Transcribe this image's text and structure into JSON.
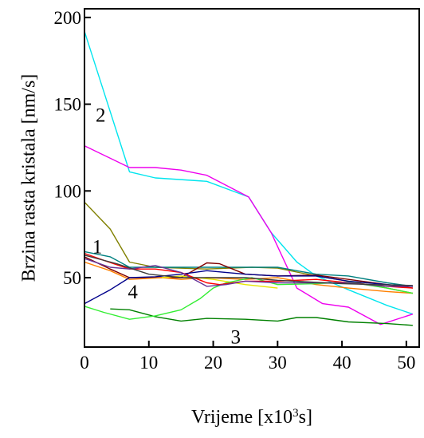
{
  "chart_data": {
    "type": "line",
    "xlabel": "Vrijeme [x10",
    "xlabel_sup": "3",
    "xlabel_end": "s]",
    "ylabel": "Brzina rasta kristala [nm/s]",
    "xlim": [
      0,
      52
    ],
    "ylim": [
      10,
      205
    ],
    "xticks": [
      0,
      10,
      20,
      30,
      40,
      50
    ],
    "yticks": [
      50,
      100,
      150,
      200
    ],
    "xtick_labels": [
      "0",
      "10",
      "20",
      "30",
      "40",
      "50"
    ],
    "ytick_labels": [
      "50",
      "100",
      "150",
      "200"
    ],
    "grid": false,
    "annotations": [
      {
        "text": "2",
        "x": 2.5,
        "y": 140
      },
      {
        "text": "1",
        "x": 2.0,
        "y": 64
      },
      {
        "text": "4",
        "x": 7.5,
        "y": 38
      },
      {
        "text": "3",
        "x": 23.5,
        "y": 12
      }
    ],
    "series": [
      {
        "color": "#00e5ee",
        "points": [
          [
            0,
            192
          ],
          [
            7,
            111
          ],
          [
            11,
            107.5
          ],
          [
            19,
            105.5
          ],
          [
            25.5,
            96.5
          ],
          [
            29,
            76
          ],
          [
            33,
            59
          ],
          [
            36,
            51
          ],
          [
            41,
            43
          ],
          [
            47,
            34
          ],
          [
            51,
            29
          ]
        ]
      },
      {
        "color": "#ee00ee",
        "points": [
          [
            0,
            126
          ],
          [
            7,
            113.5
          ],
          [
            11,
            113.5
          ],
          [
            15,
            112
          ],
          [
            19,
            109
          ],
          [
            25.5,
            96.5
          ],
          [
            29,
            76
          ],
          [
            33,
            44
          ],
          [
            37,
            35
          ],
          [
            41,
            33
          ],
          [
            46,
            23
          ],
          [
            51,
            29
          ]
        ]
      },
      {
        "color": "#808000",
        "points": [
          [
            0,
            93.5
          ],
          [
            4,
            78
          ],
          [
            7,
            59
          ],
          [
            11,
            56
          ],
          [
            19,
            55
          ],
          [
            26,
            56
          ],
          [
            30,
            55.5
          ],
          [
            36,
            51
          ],
          [
            41,
            48
          ],
          [
            47,
            44
          ],
          [
            51,
            41
          ]
        ]
      },
      {
        "color": "#008080",
        "points": [
          [
            0,
            65
          ],
          [
            4,
            62
          ],
          [
            7,
            56
          ],
          [
            19,
            56
          ],
          [
            26,
            56
          ],
          [
            30,
            56
          ],
          [
            36,
            52
          ],
          [
            41,
            51
          ],
          [
            47,
            47
          ],
          [
            51,
            45
          ]
        ]
      },
      {
        "color": "#800000",
        "points": [
          [
            0,
            62
          ],
          [
            4,
            55
          ],
          [
            7,
            50
          ],
          [
            11,
            50
          ],
          [
            15,
            50
          ],
          [
            19,
            58.5
          ],
          [
            21,
            58
          ],
          [
            25,
            52
          ],
          [
            30,
            51
          ],
          [
            36,
            51.5
          ],
          [
            41,
            49
          ],
          [
            47,
            46
          ],
          [
            51,
            44
          ]
        ]
      },
      {
        "color": "#ff8000",
        "points": [
          [
            0,
            59
          ],
          [
            4,
            54
          ],
          [
            7,
            49
          ],
          [
            12,
            50
          ],
          [
            15,
            49
          ],
          [
            19,
            50
          ],
          [
            25,
            49
          ],
          [
            30,
            50
          ],
          [
            36,
            46
          ],
          [
            41,
            44
          ],
          [
            47,
            42
          ],
          [
            51,
            41
          ]
        ]
      },
      {
        "color": "#e6e600",
        "points": [
          [
            12,
            50
          ],
          [
            15,
            51
          ],
          [
            20,
            49
          ],
          [
            25,
            46
          ],
          [
            30,
            44
          ]
        ]
      },
      {
        "color": "#008000",
        "points": [
          [
            4,
            32
          ],
          [
            7,
            31.5
          ],
          [
            11,
            27.5
          ],
          [
            15,
            25
          ],
          [
            19,
            26.5
          ],
          [
            25,
            26
          ],
          [
            30,
            25
          ],
          [
            33,
            27
          ],
          [
            36,
            27
          ],
          [
            41,
            24.5
          ],
          [
            47,
            23.5
          ],
          [
            51,
            22.5
          ]
        ]
      },
      {
        "color": "#33ee33",
        "points": [
          [
            0,
            33.5
          ],
          [
            3,
            30
          ],
          [
            7,
            26
          ],
          [
            11,
            28
          ],
          [
            15,
            31.5
          ],
          [
            18,
            38
          ],
          [
            20,
            44
          ],
          [
            22,
            47
          ],
          [
            26,
            50
          ],
          [
            30,
            46
          ],
          [
            36,
            46.5
          ],
          [
            41,
            47.5
          ],
          [
            47,
            44
          ],
          [
            51,
            41
          ]
        ]
      },
      {
        "color": "#00008b",
        "points": [
          [
            0,
            35
          ],
          [
            4,
            43
          ],
          [
            7,
            50
          ],
          [
            11,
            50.5
          ],
          [
            15,
            52
          ],
          [
            19,
            54
          ],
          [
            25,
            52
          ],
          [
            30,
            51
          ],
          [
            36,
            51
          ],
          [
            41,
            48
          ],
          [
            47,
            46
          ],
          [
            51,
            45
          ]
        ]
      },
      {
        "color": "#ff0000",
        "points": [
          [
            0,
            64
          ],
          [
            3,
            60
          ],
          [
            7,
            55
          ],
          [
            11,
            55
          ],
          [
            15,
            53
          ],
          [
            19,
            47
          ],
          [
            21,
            46
          ],
          [
            25,
            48
          ],
          [
            30,
            48
          ],
          [
            36,
            49
          ],
          [
            41,
            47
          ],
          [
            47,
            45
          ],
          [
            51,
            44
          ]
        ]
      },
      {
        "color": "#663399",
        "points": [
          [
            0,
            61
          ],
          [
            4,
            56
          ],
          [
            7,
            55
          ],
          [
            11,
            57
          ],
          [
            15,
            53
          ],
          [
            19,
            45
          ],
          [
            22,
            46
          ],
          [
            25,
            48
          ],
          [
            30,
            47
          ],
          [
            36,
            47
          ],
          [
            41,
            47
          ],
          [
            47,
            45
          ],
          [
            51,
            45
          ]
        ]
      },
      {
        "color": "#3c3c3c",
        "points": [
          [
            0,
            63
          ],
          [
            5,
            58
          ],
          [
            10,
            52
          ],
          [
            15,
            50
          ],
          [
            20,
            50
          ],
          [
            25,
            50
          ],
          [
            30,
            48.5
          ],
          [
            35,
            47.5
          ],
          [
            40,
            46.5
          ],
          [
            45,
            46
          ],
          [
            51,
            45.5
          ]
        ]
      }
    ]
  }
}
